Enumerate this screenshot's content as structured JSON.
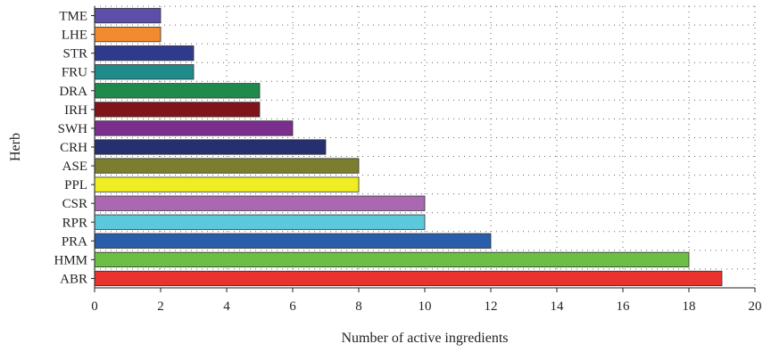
{
  "chart_data": {
    "type": "bar",
    "orientation": "horizontal",
    "title": "",
    "xlabel": "Number of active ingredients",
    "ylabel": "Herb",
    "xlim": [
      0,
      20
    ],
    "x_ticks": [
      0,
      2,
      4,
      6,
      8,
      10,
      12,
      14,
      16,
      18,
      20
    ],
    "grid": true,
    "categories": [
      "TME",
      "LHE",
      "STR",
      "FRU",
      "DRA",
      "IRH",
      "SWH",
      "CRH",
      "ASE",
      "PPL",
      "CSR",
      "RPR",
      "PRA",
      "HMM",
      "ABR"
    ],
    "values": [
      2,
      2,
      3,
      3,
      5,
      5,
      6,
      7,
      8,
      8,
      10,
      10,
      12,
      18,
      19
    ],
    "colors": [
      "#5b4fa8",
      "#f28a30",
      "#2e3b8c",
      "#1f8a8a",
      "#1f8a4c",
      "#7f1518",
      "#7a2e8e",
      "#27306e",
      "#7b7d2f",
      "#eeee22",
      "#a968b0",
      "#5cc8dc",
      "#2a5eaa",
      "#6cbf45",
      "#e8332f"
    ]
  }
}
